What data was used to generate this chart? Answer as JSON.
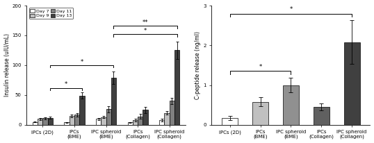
{
  "left_chart": {
    "ylabel": "Insulin release (uIU/mL)",
    "ylim": [
      0,
      200
    ],
    "yticks": [
      0,
      50,
      100,
      150,
      200
    ],
    "groups": [
      "IPCs (2D)",
      "IPCs\n(BME)",
      "IPC spheroid\n(BME)",
      "IPCs\n(Collagen)",
      "IPC spheroid\n(Collagen)"
    ],
    "days": [
      "Day 7",
      "Day 9",
      "Day 11",
      "Day 13"
    ],
    "colors": [
      "#ffffff",
      "#c0c0c0",
      "#808080",
      "#404040"
    ],
    "edgecolor": "#000000",
    "values": [
      [
        5,
        10,
        11,
        12
      ],
      [
        4,
        15,
        17,
        49
      ],
      [
        10,
        13,
        26,
        79
      ],
      [
        4,
        8,
        14,
        25
      ],
      [
        8,
        20,
        40,
        125
      ]
    ],
    "errors": [
      [
        1,
        1.5,
        1.5,
        2
      ],
      [
        1,
        2,
        3,
        5
      ],
      [
        2,
        2,
        5,
        10
      ],
      [
        1,
        2,
        4,
        5
      ],
      [
        2,
        3,
        5,
        15
      ]
    ]
  },
  "right_chart": {
    "ylabel": "C-peptide release (ng/ml)",
    "ylim": [
      0,
      3
    ],
    "yticks": [
      0,
      1,
      2,
      3
    ],
    "groups": [
      "IPCs (2D)",
      "IPCs\n(BME)",
      "IPC spheroid\n(BME)",
      "IPCs\n(Collagen)",
      "IPC spheroid\n(Collagen)"
    ],
    "colors": [
      "#ffffff",
      "#c0c0c0",
      "#909090",
      "#606060",
      "#404040"
    ],
    "edgecolor": "#000000",
    "values": [
      0.17,
      0.58,
      1.0,
      0.45,
      2.08
    ],
    "errors": [
      0.05,
      0.12,
      0.18,
      0.08,
      0.55
    ]
  }
}
